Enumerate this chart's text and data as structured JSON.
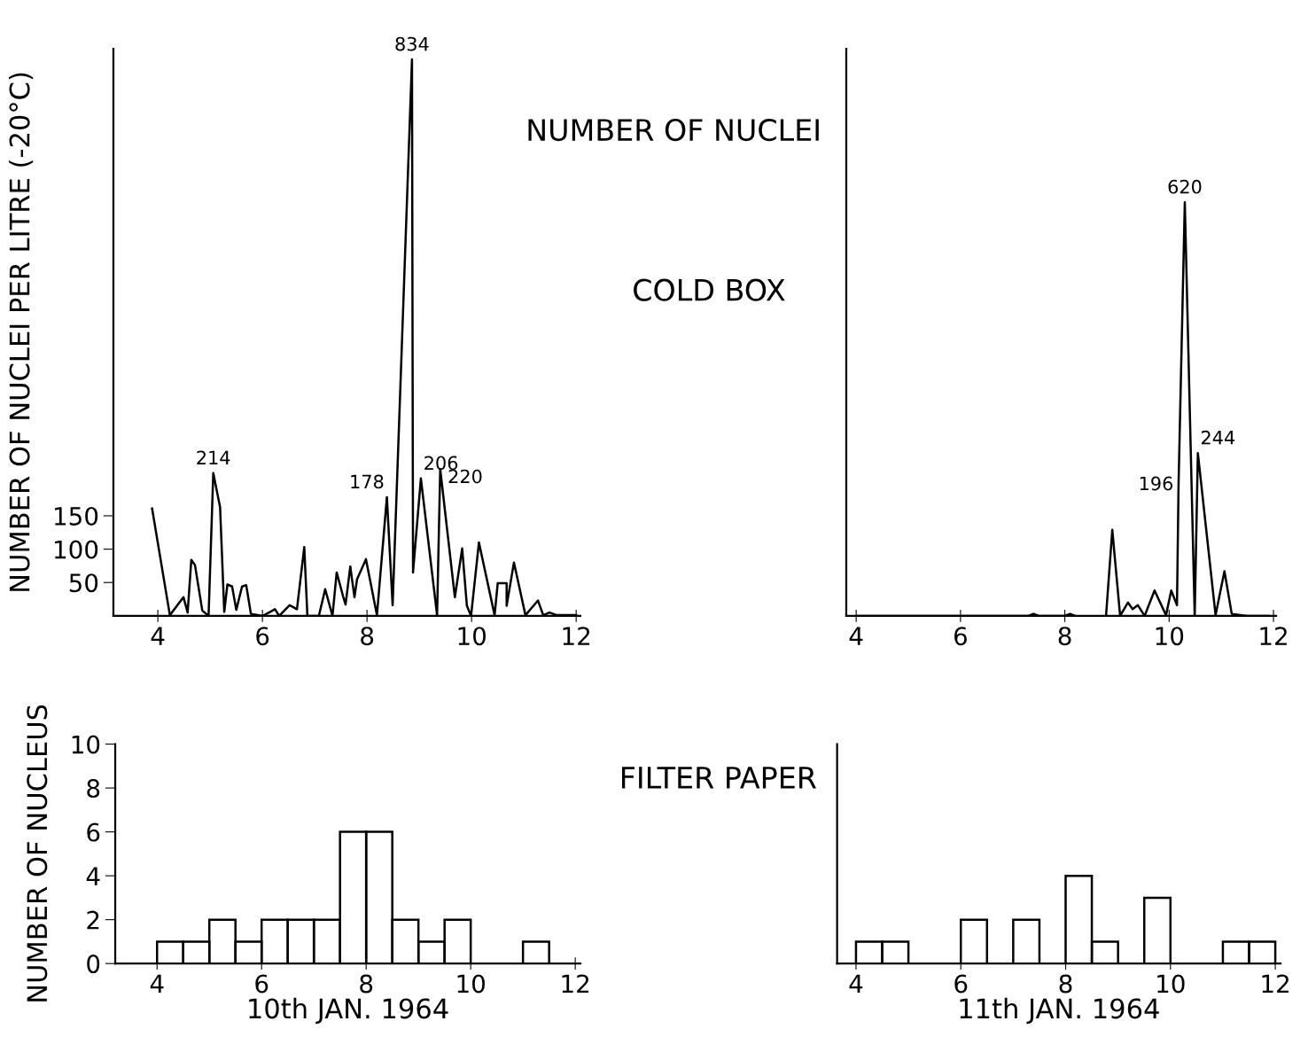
{
  "chart_data": [
    {
      "type": "line",
      "ylabel": "NUMBER OF NUCLEI PER LITRE (-20°C)",
      "annotations": [
        "NUMBER OF NUCLEI",
        "COLD BOX"
      ],
      "xlim": [
        3.15,
        12.08
      ],
      "xticks": [
        4,
        6,
        8,
        10,
        12
      ],
      "ylim": [
        0,
        850
      ],
      "yticks": [
        50,
        100,
        150
      ],
      "marker": "none",
      "line_style": "solid",
      "series": [
        {
          "color": "#000000",
          "x": [
            3.89,
            4.23,
            4.49,
            4.57,
            4.64,
            4.71,
            4.85,
            4.97,
            5.06,
            5.19,
            5.27,
            5.33,
            5.42,
            5.5,
            5.61,
            5.69,
            5.78,
            6.01,
            6.24,
            6.32,
            6.52,
            6.66,
            6.8,
            6.86,
            7.08,
            7.2,
            7.34,
            7.42,
            7.54,
            7.59,
            7.68,
            7.76,
            7.81,
            7.98,
            8.19,
            8.38,
            8.49,
            8.86,
            8.88,
            9.03,
            9.34,
            9.4,
            9.68,
            9.82,
            9.91,
            9.99,
            10.14,
            10.44,
            10.5,
            10.67,
            10.67,
            10.81,
            11.03,
            11.27,
            11.37,
            11.49,
            11.63,
            12.0
          ],
          "values": [
            161,
            1,
            28,
            5,
            84,
            76,
            8,
            0,
            214,
            163,
            6,
            47,
            44,
            9,
            44,
            46,
            3,
            0,
            10,
            0,
            16,
            10,
            103,
            0,
            0,
            40,
            0,
            65,
            30,
            17,
            74,
            28,
            55,
            85,
            1,
            178,
            16,
            834,
            65,
            206,
            1,
            220,
            28,
            101,
            15,
            0,
            110,
            1,
            49,
            49,
            15,
            80,
            1,
            23,
            1,
            5,
            1,
            1
          ],
          "value_labels": [
            null,
            null,
            null,
            null,
            null,
            null,
            null,
            null,
            "214",
            null,
            null,
            null,
            null,
            null,
            null,
            null,
            null,
            null,
            null,
            null,
            null,
            null,
            null,
            null,
            null,
            null,
            null,
            null,
            null,
            null,
            null,
            null,
            null,
            null,
            null,
            "178",
            null,
            "834",
            null,
            "206",
            null,
            "220",
            null,
            null,
            null,
            null,
            null,
            null,
            null,
            null,
            null,
            null,
            null,
            null,
            null,
            null,
            null,
            null
          ]
        }
      ]
    },
    {
      "type": "line",
      "tick_labels": "x",
      "xlim": [
        3.81,
        12.05
      ],
      "xticks": [
        4,
        6,
        8,
        10,
        12
      ],
      "ylim": [
        0,
        850
      ],
      "yticks": [
        50,
        100,
        150
      ],
      "marker": "none",
      "line_style": "solid",
      "series": [
        {
          "color": "#000000",
          "x": [
            4.0,
            7.3,
            7.4,
            7.5,
            8.0,
            8.1,
            8.2,
            8.5,
            8.79,
            8.91,
            9.06,
            9.21,
            9.3,
            9.4,
            9.53,
            9.72,
            9.94,
            10.04,
            10.15,
            10.18,
            10.3,
            10.49,
            10.55,
            10.89,
            11.06,
            11.2,
            11.5,
            11.91
          ],
          "values": [
            0,
            0,
            3,
            0,
            0,
            3,
            0,
            null,
            0,
            129,
            0,
            20,
            10,
            16,
            0,
            38,
            1,
            38,
            16,
            196,
            620,
            0,
            244,
            1,
            67,
            3,
            0,
            0
          ],
          "value_labels": [
            null,
            null,
            null,
            null,
            null,
            null,
            null,
            null,
            null,
            null,
            null,
            null,
            null,
            null,
            null,
            null,
            null,
            null,
            null,
            "196",
            "620",
            null,
            "244",
            null,
            null,
            null,
            null,
            null
          ]
        }
      ]
    },
    {
      "type": "histogram",
      "ylabel": "NUMBER OF NUCLEUS",
      "xlabel": "10th JAN. 1964",
      "annotations": [
        "FILTER PAPER"
      ],
      "xlim": [
        3.2,
        12.1
      ],
      "xticks": [
        4,
        6,
        8,
        10,
        12
      ],
      "ylim": [
        0,
        10
      ],
      "yticks": [
        0,
        2,
        4,
        6,
        8,
        10
      ],
      "color": "#000000",
      "bins": [
        4.0,
        4.5,
        5.0,
        5.5,
        6.0,
        6.5,
        7.0,
        7.5,
        8.0,
        8.5,
        9.0,
        9.5,
        10.0,
        10.5,
        11.0,
        11.5
      ],
      "values": [
        1,
        1,
        2,
        1,
        2,
        2,
        2,
        6,
        6,
        2,
        1,
        2,
        0,
        0,
        1
      ]
    },
    {
      "type": "histogram",
      "xlabel": "11th JAN. 1964",
      "tick_labels": "x",
      "xlim": [
        3.64,
        12.1
      ],
      "xticks": [
        4,
        6,
        8,
        10,
        12
      ],
      "ylim": [
        0,
        10
      ],
      "yticks": [
        0,
        2,
        4,
        6,
        8,
        10
      ],
      "color": "#000000",
      "bins": [
        4.0,
        4.5,
        5.0,
        5.5,
        6.0,
        6.5,
        7.0,
        7.5,
        8.0,
        8.5,
        9.0,
        9.5,
        10.0,
        10.5,
        11.0,
        11.5,
        12.0
      ],
      "values": [
        1,
        1,
        0,
        0,
        2,
        0,
        2,
        0,
        4,
        1,
        0,
        3,
        0,
        0,
        1,
        1
      ]
    }
  ]
}
